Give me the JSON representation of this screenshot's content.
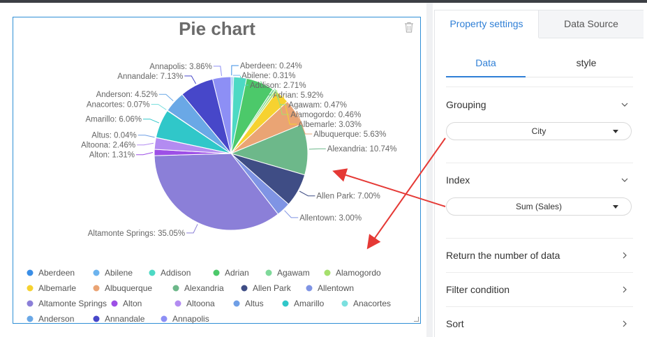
{
  "sidebar": {
    "tabs": [
      "Property settings",
      "Data Source"
    ],
    "subtabs": [
      "Data",
      "style"
    ],
    "grouping_label": "Grouping",
    "grouping_value": "City",
    "index_label": "Index",
    "index_value": "Sum (Sales)",
    "return_label": "Return the number of data",
    "filter_label": "Filter condition",
    "sort_label": "Sort"
  },
  "chart_data": {
    "type": "pie",
    "title": "Pie chart",
    "legend_position": "bottom",
    "slices": [
      {
        "name": "Aberdeen",
        "value": 0.24,
        "label": "Aberdeen: 0.24%",
        "color": "#3a8ee6"
      },
      {
        "name": "Abilene",
        "value": 0.31,
        "label": "Abilene: 0.31%",
        "color": "#6cb3ee"
      },
      {
        "name": "Addison",
        "value": 2.71,
        "label": "Addison: 2.71%",
        "color": "#4dd9c4"
      },
      {
        "name": "Adrian",
        "value": 5.92,
        "label": "Adrian: 5.92%",
        "color": "#4cc96a"
      },
      {
        "name": "Agawam",
        "value": 0.47,
        "label": "Agawam: 0.47%",
        "color": "#7fd99a"
      },
      {
        "name": "Alamogordo",
        "value": 0.46,
        "label": "Alamogordo: 0.46%",
        "color": "#a6e06d"
      },
      {
        "name": "Albemarle",
        "value": 3.03,
        "label": "Albemarle: 3.03%",
        "color": "#f6d230"
      },
      {
        "name": "Albuquerque",
        "value": 5.63,
        "label": "Albuquerque: 5.63%",
        "color": "#eaa474"
      },
      {
        "name": "Alexandria",
        "value": 10.74,
        "label": "Alexandria: 10.74%",
        "color": "#6db88a"
      },
      {
        "name": "Allen Park",
        "value": 7.0,
        "label": "Allen Park: 7.00%",
        "color": "#3f4d85"
      },
      {
        "name": "Allentown",
        "value": 3.0,
        "label": "Allentown: 3.00%",
        "color": "#7f94e4"
      },
      {
        "name": "Altamonte Springs",
        "value": 35.05,
        "label": "Altamonte Springs: 35.05%",
        "color": "#8b7fd8"
      },
      {
        "name": "Alton",
        "value": 1.31,
        "label": "Alton: 1.31%",
        "color": "#9d4fe6"
      },
      {
        "name": "Altoona",
        "value": 2.46,
        "label": "Altoona: 2.46%",
        "color": "#b38cf1"
      },
      {
        "name": "Altus",
        "value": 0.04,
        "label": "Altus: 0.04%",
        "color": "#6f9fe6"
      },
      {
        "name": "Amarillo",
        "value": 6.06,
        "label": "Amarillo: 6.06%",
        "color": "#30c7c9"
      },
      {
        "name": "Anacortes",
        "value": 0.07,
        "label": "Anacortes: 0.07%",
        "color": "#7be0df"
      },
      {
        "name": "Anderson",
        "value": 4.52,
        "label": "Anderson: 4.52%",
        "color": "#6aa8e6"
      },
      {
        "name": "Annandale",
        "value": 7.13,
        "label": "Annandale: 7.13%",
        "color": "#4747c9"
      },
      {
        "name": "Annapolis",
        "value": 3.86,
        "label": "Annapolis: 3.86%",
        "color": "#8d8ff5"
      }
    ]
  }
}
